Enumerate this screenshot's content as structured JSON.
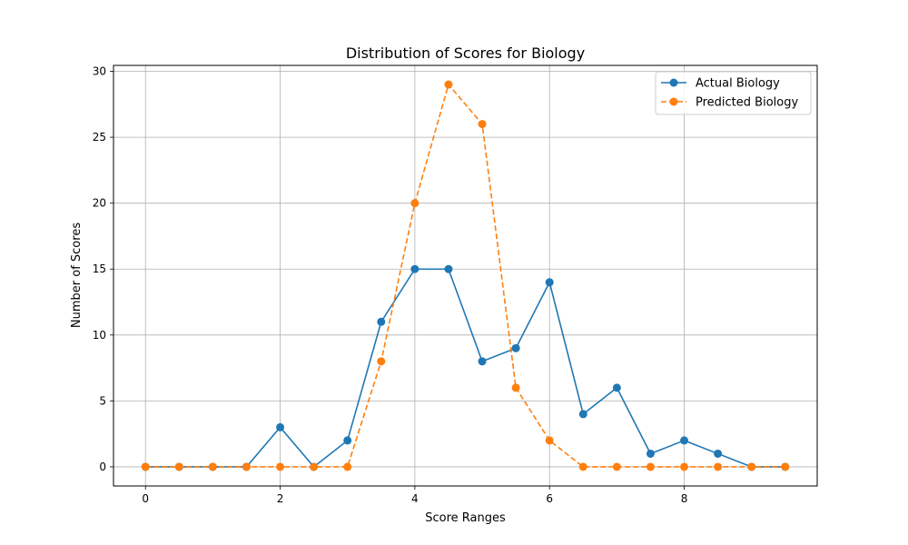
{
  "chart_data": {
    "type": "line",
    "title": "Distribution of Scores for Biology",
    "xlabel": "Score Ranges",
    "ylabel": "Number of Scores",
    "x": [
      0,
      0.5,
      1,
      1.5,
      2,
      2.5,
      3,
      3.5,
      4,
      4.5,
      5,
      5.5,
      6,
      6.5,
      7,
      7.5,
      8,
      8.5,
      9,
      9.5
    ],
    "xlim": [
      -0.475,
      9.975
    ],
    "ylim": [
      -1.45,
      30.45
    ],
    "xticks": [
      "0",
      "2",
      "4",
      "6",
      "8"
    ],
    "yticks": [
      "0",
      "5",
      "10",
      "15",
      "20",
      "25",
      "30"
    ],
    "grid": true,
    "legend_position": "top-right",
    "series": [
      {
        "name": "Actual Biology",
        "color": "#1f77b4",
        "line_style": "solid",
        "values": [
          0,
          0,
          0,
          0,
          3,
          0,
          2,
          11,
          15,
          15,
          8,
          9,
          14,
          4,
          6,
          1,
          2,
          1,
          0,
          0
        ]
      },
      {
        "name": "Predicted Biology",
        "color": "#ff7f0e",
        "line_style": "dashed",
        "values": [
          0,
          0,
          0,
          0,
          0,
          0,
          0,
          8,
          20,
          29,
          26,
          6,
          2,
          0,
          0,
          0,
          0,
          0,
          0,
          0
        ]
      }
    ]
  }
}
